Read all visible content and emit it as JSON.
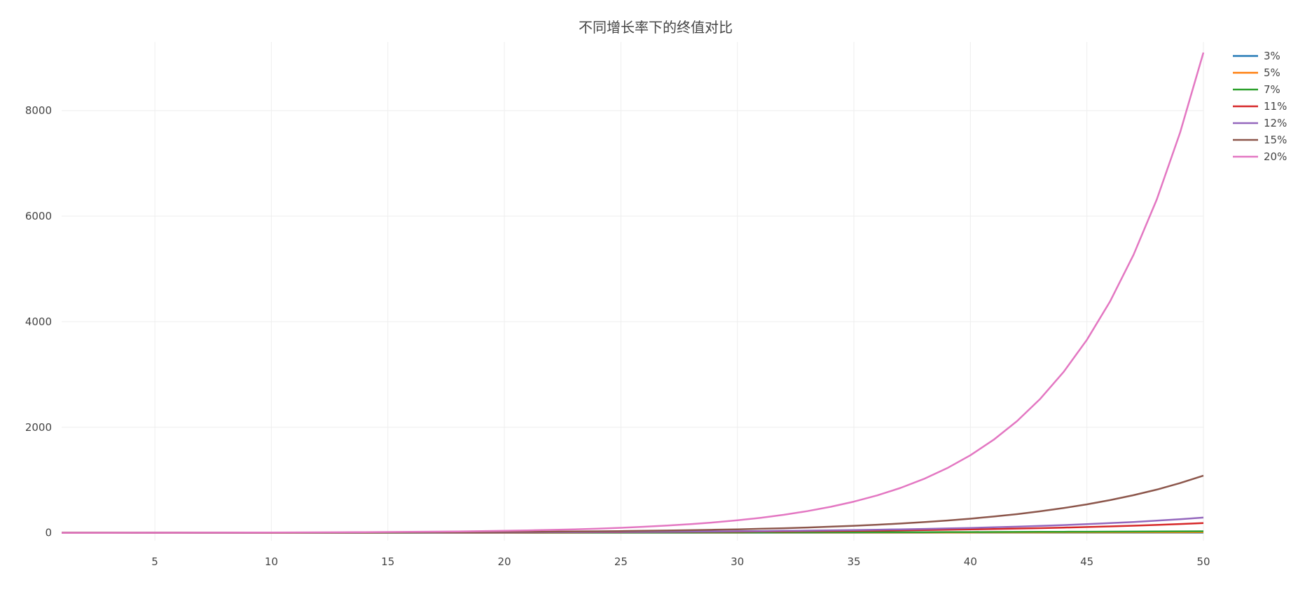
{
  "chart_data": {
    "type": "line",
    "title": "不同增长率下的终值对比",
    "xlabel": "",
    "ylabel": "",
    "x_range": [
      1,
      50
    ],
    "y_range": [
      -150,
      9300
    ],
    "x_ticks": [
      5,
      10,
      15,
      20,
      25,
      30,
      35,
      40,
      45,
      50
    ],
    "y_ticks": [
      0,
      2000,
      4000,
      6000,
      8000
    ],
    "grid": true,
    "legend_position": "top-right",
    "x": [
      1,
      2,
      3,
      4,
      5,
      6,
      7,
      8,
      9,
      10,
      11,
      12,
      13,
      14,
      15,
      16,
      17,
      18,
      19,
      20,
      21,
      22,
      23,
      24,
      25,
      26,
      27,
      28,
      29,
      30,
      31,
      32,
      33,
      34,
      35,
      36,
      37,
      38,
      39,
      40,
      41,
      42,
      43,
      44,
      45,
      46,
      47,
      48,
      49,
      50
    ],
    "series": [
      {
        "name": "3%",
        "color": "#1f77b4",
        "values": [
          1.03,
          1.06,
          1.09,
          1.13,
          1.16,
          1.19,
          1.23,
          1.27,
          1.3,
          1.34,
          1.38,
          1.43,
          1.47,
          1.51,
          1.56,
          1.6,
          1.65,
          1.7,
          1.75,
          1.81,
          1.86,
          1.92,
          1.97,
          2.03,
          2.09,
          2.16,
          2.22,
          2.29,
          2.36,
          2.43,
          2.5,
          2.58,
          2.65,
          2.73,
          2.81,
          2.9,
          2.99,
          3.07,
          3.17,
          3.26,
          3.36,
          3.46,
          3.56,
          3.67,
          3.78,
          3.9,
          4.01,
          4.13,
          4.26,
          4.38
        ]
      },
      {
        "name": "5%",
        "color": "#ff7f0e",
        "values": [
          1.05,
          1.1,
          1.16,
          1.22,
          1.28,
          1.34,
          1.41,
          1.48,
          1.55,
          1.63,
          1.71,
          1.8,
          1.89,
          1.98,
          2.08,
          2.18,
          2.29,
          2.41,
          2.53,
          2.65,
          2.79,
          2.93,
          3.07,
          3.23,
          3.39,
          3.56,
          3.73,
          3.92,
          4.12,
          4.32,
          4.54,
          4.76,
          5.0,
          5.25,
          5.52,
          5.79,
          6.08,
          6.39,
          6.7,
          7.04,
          7.39,
          7.76,
          8.15,
          8.56,
          8.99,
          9.43,
          9.91,
          10.4,
          10.92,
          11.47
        ]
      },
      {
        "name": "7%",
        "color": "#2ca02c",
        "values": [
          1.07,
          1.14,
          1.23,
          1.31,
          1.4,
          1.5,
          1.61,
          1.72,
          1.84,
          1.97,
          2.1,
          2.25,
          2.41,
          2.58,
          2.76,
          2.95,
          3.16,
          3.38,
          3.62,
          3.87,
          4.14,
          4.43,
          4.74,
          5.07,
          5.43,
          5.81,
          6.21,
          6.65,
          7.11,
          7.61,
          8.15,
          8.72,
          9.33,
          9.98,
          10.68,
          11.42,
          12.22,
          13.08,
          13.99,
          14.97,
          16.02,
          17.14,
          18.34,
          19.63,
          21.0,
          22.47,
          24.05,
          25.73,
          27.53,
          29.46
        ]
      },
      {
        "name": "11%",
        "color": "#d62728",
        "values": [
          1.11,
          1.23,
          1.37,
          1.52,
          1.69,
          1.87,
          2.08,
          2.3,
          2.56,
          2.84,
          3.15,
          3.5,
          3.88,
          4.31,
          4.78,
          5.31,
          5.9,
          6.54,
          7.26,
          8.06,
          8.95,
          9.93,
          11.03,
          12.24,
          13.59,
          15.08,
          16.74,
          18.58,
          20.62,
          22.89,
          25.41,
          28.21,
          31.31,
          34.75,
          38.57,
          42.82,
          47.53,
          52.76,
          58.56,
          65.0,
          72.15,
          80.09,
          88.9,
          98.68,
          109.53,
          121.58,
          134.95,
          149.8,
          166.28,
          184.57
        ]
      },
      {
        "name": "12%",
        "color": "#9467bd",
        "values": [
          1.12,
          1.25,
          1.4,
          1.57,
          1.76,
          1.97,
          2.21,
          2.48,
          2.77,
          3.11,
          3.48,
          3.9,
          4.36,
          4.89,
          5.47,
          6.13,
          6.87,
          7.69,
          8.61,
          9.65,
          10.8,
          12.1,
          13.55,
          15.18,
          17.0,
          19.04,
          21.32,
          23.88,
          26.75,
          29.96,
          33.56,
          37.58,
          42.09,
          47.14,
          52.8,
          59.14,
          66.23,
          74.18,
          83.08,
          93.05,
          104.22,
          116.72,
          130.73,
          146.42,
          163.99,
          183.67,
          205.71,
          230.39,
          258.04,
          289.0
        ]
      },
      {
        "name": "15%",
        "color": "#8c564b",
        "values": [
          1.15,
          1.32,
          1.52,
          1.75,
          2.01,
          2.31,
          2.66,
          3.06,
          3.52,
          4.05,
          4.65,
          5.35,
          6.15,
          7.08,
          8.14,
          9.36,
          10.76,
          12.38,
          14.23,
          16.37,
          18.82,
          21.64,
          24.89,
          28.63,
          32.92,
          37.86,
          43.54,
          50.07,
          57.58,
          66.21,
          76.14,
          87.57,
          100.7,
          115.8,
          133.18,
          153.15,
          176.13,
          202.54,
          232.92,
          267.86,
          308.04,
          354.25,
          407.39,
          468.49,
          538.77,
          619.58,
          712.52,
          819.4,
          942.31,
          1083.66
        ]
      },
      {
        "name": "20%",
        "color": "#e377c2",
        "values": [
          1.2,
          1.44,
          1.73,
          2.07,
          2.49,
          2.99,
          3.58,
          4.3,
          5.16,
          6.19,
          7.43,
          8.92,
          10.7,
          12.84,
          15.41,
          18.49,
          22.19,
          26.62,
          31.95,
          38.34,
          46.01,
          55.21,
          66.25,
          79.5,
          95.4,
          114.48,
          137.37,
          164.84,
          197.81,
          237.38,
          284.85,
          341.82,
          410.19,
          492.22,
          590.67,
          708.8,
          850.56,
          1020.67,
          1224.81,
          1469.77,
          1763.73,
          2116.47,
          2539.77,
          3047.72,
          3657.26,
          4388.71,
          5266.46,
          6319.75,
          7583.7,
          9100.44
        ]
      }
    ]
  }
}
